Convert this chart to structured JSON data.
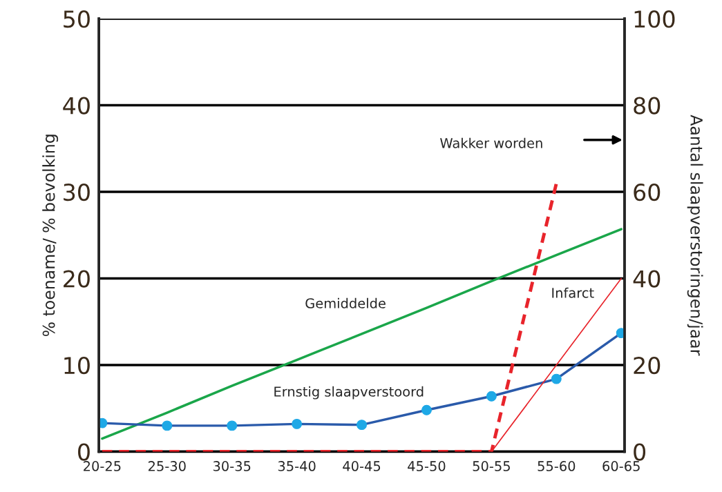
{
  "chart_data": {
    "type": "line",
    "categories": [
      "20-25",
      "25-30",
      "30-35",
      "35-40",
      "40-45",
      "45-50",
      "50-55",
      "55-60",
      "60-65"
    ],
    "ylabel": "% toename/ % bevolking",
    "y2label": "Aantal slaapverstoringen/jaar",
    "ylim": [
      0,
      50
    ],
    "yticks": [
      0,
      10,
      20,
      30,
      40,
      50
    ],
    "y2lim": [
      0,
      100
    ],
    "y2ticks": [
      0,
      20,
      40,
      60,
      80,
      100
    ],
    "grid": "y",
    "legend": false,
    "series": [
      {
        "name": "Gemiddelde",
        "color": "#1aa64a",
        "marker": "none",
        "line_style": "solid",
        "values": [
          1.5,
          4.5,
          7.6,
          10.6,
          13.6,
          16.6,
          19.7,
          22.7,
          25.7
        ]
      },
      {
        "name": "Ernstig slaapverstoord",
        "color": "#2a5aaa",
        "marker": "circle",
        "line_style": "solid",
        "values": [
          3.3,
          3.0,
          3.0,
          3.2,
          3.1,
          4.8,
          6.4,
          8.4,
          13.7
        ]
      },
      {
        "name": "Infarct",
        "color": "#e8242b",
        "marker": "none",
        "line_style": "solid",
        "values": [
          null,
          null,
          null,
          null,
          null,
          null,
          0,
          10,
          20
        ]
      },
      {
        "name": "Wakker worden",
        "color": "#e8242b",
        "marker": "none",
        "line_style": "dashed",
        "axis": "y2",
        "values": [
          0,
          0,
          0,
          0,
          0,
          0,
          0,
          62,
          null
        ]
      }
    ]
  }
}
